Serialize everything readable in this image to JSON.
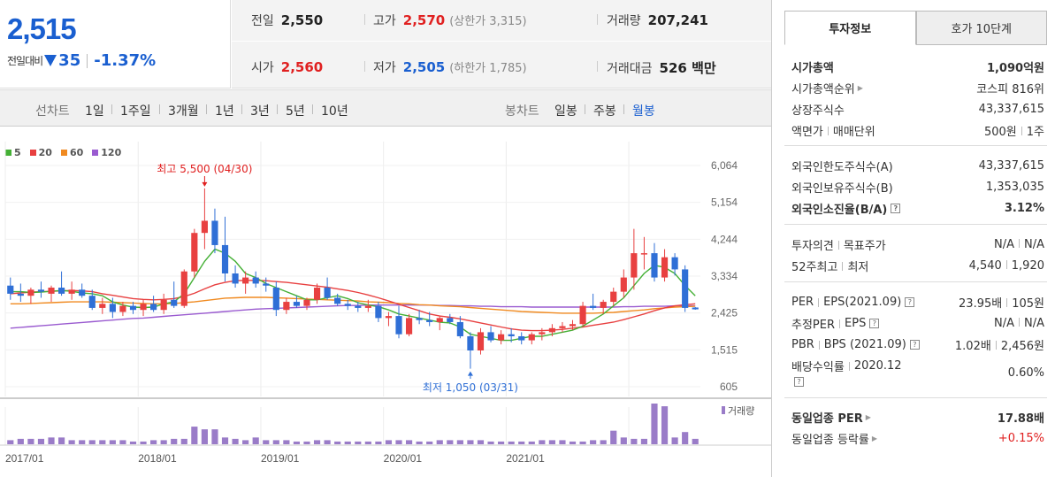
{
  "summary": {
    "price": "2,515",
    "change_label": "전일대비",
    "change_value": "35",
    "change_pct": "-1.37%"
  },
  "info": {
    "prev_close_label": "전일",
    "prev_close": "2,550",
    "high_label": "고가",
    "high": "2,570",
    "upper_limit": "(상한가 3,315)",
    "volume_label": "거래량",
    "volume": "207,241",
    "open_label": "시가",
    "open": "2,560",
    "low_label": "저가",
    "low": "2,505",
    "lower_limit": "(하한가 1,785)",
    "amount_label": "거래대금",
    "amount": "526 백만"
  },
  "toolbar": {
    "line_label": "선차트",
    "line_periods": [
      "1일",
      "1주일",
      "3개월",
      "1년",
      "3년",
      "5년",
      "10년"
    ],
    "candle_label": "봉차트",
    "candle_periods": [
      "일봉",
      "주봉",
      "월봉"
    ],
    "active_candle": "월봉"
  },
  "chart_data": {
    "type": "candlestick",
    "legend": [
      {
        "name": "5",
        "color": "#44b035"
      },
      {
        "name": "20",
        "color": "#e84040"
      },
      {
        "name": "60",
        "color": "#f08a20"
      },
      {
        "name": "120",
        "color": "#9a5bd0"
      }
    ],
    "y_ticks": [
      "6,064",
      "5,154",
      "4,244",
      "3,334",
      "2,425",
      "1,515",
      "605"
    ],
    "ylim": [
      605,
      6064
    ],
    "x_ticks": [
      "2017/01",
      "2018/01",
      "2019/01",
      "2020/01",
      "2021/01"
    ],
    "annotation_high": "최고 5,500 (04/30)",
    "annotation_low": "최저 1,050 (03/31)",
    "volume_label": "거래량",
    "colors": {
      "up": "#e84040",
      "down": "#2f6fd6",
      "volume": "#9a7cc8"
    },
    "candles": [
      {
        "o": 3100,
        "h": 3300,
        "l": 2750,
        "c": 2900
      },
      {
        "o": 2900,
        "h": 3150,
        "l": 2700,
        "c": 2850
      },
      {
        "o": 2850,
        "h": 3050,
        "l": 2650,
        "c": 3000
      },
      {
        "o": 3000,
        "h": 3200,
        "l": 2800,
        "c": 2950
      },
      {
        "o": 2900,
        "h": 3100,
        "l": 2700,
        "c": 3050
      },
      {
        "o": 3050,
        "h": 3450,
        "l": 2850,
        "c": 2900
      },
      {
        "o": 2900,
        "h": 3200,
        "l": 2750,
        "c": 3000
      },
      {
        "o": 3000,
        "h": 3150,
        "l": 2800,
        "c": 2850
      },
      {
        "o": 2850,
        "h": 3000,
        "l": 2500,
        "c": 2550
      },
      {
        "o": 2550,
        "h": 2800,
        "l": 2400,
        "c": 2650
      },
      {
        "o": 2650,
        "h": 2800,
        "l": 2300,
        "c": 2450
      },
      {
        "o": 2450,
        "h": 2700,
        "l": 2350,
        "c": 2600
      },
      {
        "o": 2600,
        "h": 2700,
        "l": 2400,
        "c": 2500
      },
      {
        "o": 2500,
        "h": 2750,
        "l": 2350,
        "c": 2650
      },
      {
        "o": 2650,
        "h": 2850,
        "l": 2450,
        "c": 2500
      },
      {
        "o": 2500,
        "h": 2900,
        "l": 2400,
        "c": 2750
      },
      {
        "o": 2750,
        "h": 3200,
        "l": 2550,
        "c": 2600
      },
      {
        "o": 2600,
        "h": 3500,
        "l": 2550,
        "c": 3450
      },
      {
        "o": 3450,
        "h": 4500,
        "l": 3300,
        "c": 4400
      },
      {
        "o": 4400,
        "h": 5500,
        "l": 4000,
        "c": 4700
      },
      {
        "o": 4700,
        "h": 5000,
        "l": 3900,
        "c": 4100
      },
      {
        "o": 4100,
        "h": 4800,
        "l": 3200,
        "c": 3400
      },
      {
        "o": 3400,
        "h": 3600,
        "l": 3050,
        "c": 3150
      },
      {
        "o": 3150,
        "h": 3450,
        "l": 2900,
        "c": 3300
      },
      {
        "o": 3300,
        "h": 3450,
        "l": 3050,
        "c": 3150
      },
      {
        "o": 3150,
        "h": 3300,
        "l": 2950,
        "c": 3100
      },
      {
        "o": 3050,
        "h": 3200,
        "l": 2350,
        "c": 2500
      },
      {
        "o": 2500,
        "h": 2800,
        "l": 2400,
        "c": 2700
      },
      {
        "o": 2700,
        "h": 2850,
        "l": 2550,
        "c": 2600
      },
      {
        "o": 2600,
        "h": 2800,
        "l": 2500,
        "c": 2750
      },
      {
        "o": 2750,
        "h": 3150,
        "l": 2650,
        "c": 3050
      },
      {
        "o": 3050,
        "h": 3300,
        "l": 2750,
        "c": 2800
      },
      {
        "o": 2800,
        "h": 2900,
        "l": 2600,
        "c": 2650
      },
      {
        "o": 2650,
        "h": 2750,
        "l": 2500,
        "c": 2600
      },
      {
        "o": 2600,
        "h": 2700,
        "l": 2450,
        "c": 2550
      },
      {
        "o": 2550,
        "h": 2750,
        "l": 2450,
        "c": 2600
      },
      {
        "o": 2600,
        "h": 2700,
        "l": 2200,
        "c": 2300
      },
      {
        "o": 2300,
        "h": 2450,
        "l": 2100,
        "c": 2350
      },
      {
        "o": 2350,
        "h": 2600,
        "l": 1800,
        "c": 1900
      },
      {
        "o": 1900,
        "h": 2400,
        "l": 1850,
        "c": 2300
      },
      {
        "o": 2300,
        "h": 2500,
        "l": 2150,
        "c": 2250
      },
      {
        "o": 2250,
        "h": 2450,
        "l": 2100,
        "c": 2200
      },
      {
        "o": 2200,
        "h": 2350,
        "l": 2000,
        "c": 2300
      },
      {
        "o": 2300,
        "h": 2400,
        "l": 2150,
        "c": 2200
      },
      {
        "o": 2200,
        "h": 2350,
        "l": 1800,
        "c": 1850
      },
      {
        "o": 1850,
        "h": 1950,
        "l": 1050,
        "c": 1500
      },
      {
        "o": 1500,
        "h": 2050,
        "l": 1400,
        "c": 1950
      },
      {
        "o": 1950,
        "h": 2100,
        "l": 1700,
        "c": 1750
      },
      {
        "o": 1750,
        "h": 2000,
        "l": 1650,
        "c": 1900
      },
      {
        "o": 1900,
        "h": 2050,
        "l": 1700,
        "c": 1850
      },
      {
        "o": 1850,
        "h": 1950,
        "l": 1650,
        "c": 1750
      },
      {
        "o": 1750,
        "h": 1950,
        "l": 1650,
        "c": 1900
      },
      {
        "o": 1900,
        "h": 2050,
        "l": 1750,
        "c": 1950
      },
      {
        "o": 1950,
        "h": 2150,
        "l": 1850,
        "c": 2050
      },
      {
        "o": 2050,
        "h": 2200,
        "l": 1950,
        "c": 2100
      },
      {
        "o": 2100,
        "h": 2250,
        "l": 2000,
        "c": 2150
      },
      {
        "o": 2150,
        "h": 2700,
        "l": 2100,
        "c": 2600
      },
      {
        "o": 2600,
        "h": 2900,
        "l": 2500,
        "c": 2550
      },
      {
        "o": 2550,
        "h": 2750,
        "l": 2400,
        "c": 2700
      },
      {
        "o": 2700,
        "h": 3050,
        "l": 2600,
        "c": 2950
      },
      {
        "o": 2950,
        "h": 3500,
        "l": 2800,
        "c": 3300
      },
      {
        "o": 3300,
        "h": 4500,
        "l": 3000,
        "c": 3900
      },
      {
        "o": 3900,
        "h": 4300,
        "l": 3500,
        "c": 3900
      },
      {
        "o": 3900,
        "h": 4150,
        "l": 3200,
        "c": 3300
      },
      {
        "o": 3300,
        "h": 4000,
        "l": 3200,
        "c": 3800
      },
      {
        "o": 3800,
        "h": 3900,
        "l": 3350,
        "c": 3500
      },
      {
        "o": 3500,
        "h": 3600,
        "l": 2450,
        "c": 2550
      },
      {
        "o": 2560,
        "h": 2570,
        "l": 2505,
        "c": 2515
      }
    ],
    "ma5": [
      2950,
      2950,
      2930,
      2940,
      2960,
      2980,
      2960,
      2920,
      2900,
      2850,
      2700,
      2620,
      2570,
      2560,
      2570,
      2650,
      2700,
      2900,
      3300,
      3700,
      4000,
      3900,
      3700,
      3400,
      3300,
      3150,
      3050,
      2950,
      2850,
      2750,
      2750,
      2800,
      2850,
      2780,
      2680,
      2620,
      2580,
      2500,
      2400,
      2350,
      2300,
      2250,
      2200,
      2180,
      2080,
      1900,
      1850,
      1800,
      1750,
      1750,
      1800,
      1850,
      1850,
      1900,
      1950,
      2000,
      2100,
      2250,
      2400,
      2600,
      2800,
      3100,
      3400,
      3600,
      3550,
      3400,
      3100,
      2850
    ],
    "ma20": [
      2900,
      2920,
      2940,
      2950,
      2960,
      2970,
      2980,
      2970,
      2950,
      2900,
      2860,
      2820,
      2780,
      2760,
      2750,
      2760,
      2780,
      2830,
      2910,
      3020,
      3120,
      3180,
      3220,
      3230,
      3230,
      3220,
      3200,
      3180,
      3150,
      3120,
      3090,
      3060,
      3020,
      2980,
      2930,
      2870,
      2800,
      2720,
      2640,
      2560,
      2480,
      2400,
      2350,
      2320,
      2280,
      2230,
      2180,
      2130,
      2080,
      2030,
      2000,
      1990,
      1990,
      2000,
      2020,
      2050,
      2080,
      2120,
      2160,
      2200,
      2260,
      2330,
      2400,
      2480,
      2550,
      2600,
      2630,
      2650
    ],
    "ma60": [
      2650,
      2650,
      2660,
      2670,
      2680,
      2690,
      2700,
      2700,
      2700,
      2700,
      2690,
      2680,
      2670,
      2660,
      2650,
      2650,
      2660,
      2680,
      2700,
      2730,
      2760,
      2790,
      2800,
      2810,
      2810,
      2810,
      2800,
      2790,
      2780,
      2770,
      2760,
      2750,
      2740,
      2730,
      2720,
      2700,
      2690,
      2680,
      2660,
      2650,
      2630,
      2620,
      2600,
      2590,
      2580,
      2560,
      2540,
      2520,
      2500,
      2480,
      2460,
      2450,
      2440,
      2430,
      2420,
      2420,
      2420,
      2420,
      2430,
      2440,
      2460,
      2480,
      2500,
      2530,
      2550,
      2570,
      2580,
      2590
    ],
    "ma120": [
      2050,
      2070,
      2090,
      2110,
      2130,
      2150,
      2170,
      2190,
      2210,
      2230,
      2250,
      2270,
      2290,
      2300,
      2320,
      2340,
      2360,
      2380,
      2400,
      2420,
      2440,
      2460,
      2480,
      2500,
      2520,
      2530,
      2540,
      2550,
      2560,
      2570,
      2580,
      2590,
      2600,
      2610,
      2610,
      2620,
      2620,
      2620,
      2620,
      2620,
      2620,
      2620,
      2610,
      2610,
      2600,
      2600,
      2590,
      2590,
      2580,
      2580,
      2580,
      2570,
      2570,
      2570,
      2570,
      2570,
      2570,
      2570,
      2570,
      2570,
      2580,
      2580,
      2590,
      2590,
      2590,
      2600,
      2600,
      2600
    ],
    "volume": [
      3,
      4,
      4,
      4,
      5,
      5,
      3,
      3,
      3,
      3,
      3,
      3,
      2,
      2,
      3,
      3,
      4,
      4,
      13,
      11,
      11,
      5,
      4,
      3,
      5,
      3,
      3,
      3,
      2,
      2,
      3,
      3,
      2,
      2,
      2,
      2,
      2,
      3,
      3,
      3,
      2,
      2,
      3,
      3,
      3,
      3,
      3,
      2,
      2,
      2,
      2,
      2,
      3,
      3,
      3,
      2,
      2,
      3,
      3,
      10,
      5,
      4,
      4,
      30,
      28,
      5,
      9,
      4
    ]
  },
  "right": {
    "tab_active": "투자정보",
    "tab_inactive": "호가 10단계",
    "market_cap_label": "시가총액",
    "market_cap": "1,090억원",
    "cap_rank_label": "시가총액순위",
    "cap_rank": "코스피 816위",
    "shares_label": "상장주식수",
    "shares": "43,337,615",
    "face_label": "액면가",
    "unit_label": "매매단위",
    "face": "500원",
    "unit": "1주",
    "foreign_limit_label": "외국인한도주식수(A)",
    "foreign_limit": "43,337,615",
    "foreign_hold_label": "외국인보유주식수(B)",
    "foreign_hold": "1,353,035",
    "foreign_ratio_label": "외국인소진율(B/A)",
    "foreign_ratio": "3.12%",
    "opinion_label": "투자의견",
    "target_label": "목표주가",
    "opinion": "N/A",
    "target": "N/A",
    "wk52_high_label": "52주최고",
    "wk52_low_label": "최저",
    "wk52_high": "4,540",
    "wk52_low": "1,920",
    "per_label": "PER",
    "eps_label": "EPS(2021.09)",
    "per": "23.95배",
    "eps": "105원",
    "est_per_label": "추정PER",
    "est_eps_label": "EPS",
    "est_per": "N/A",
    "est_eps": "N/A",
    "pbr_label": "PBR",
    "bps_label": "BPS (2021.09)",
    "pbr": "1.02배",
    "bps": "2,456원",
    "div_label": "배당수익률",
    "div_year": "2020.12",
    "div": "0.60%",
    "ind_per_label": "동일업종 PER",
    "ind_per": "17.88배",
    "ind_chg_label": "동일업종 등락률",
    "ind_chg": "+0.15%"
  }
}
